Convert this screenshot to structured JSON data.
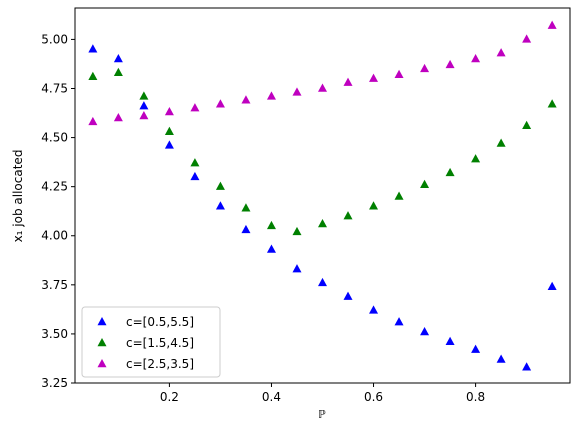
{
  "chart_data": {
    "type": "scatter",
    "title": "",
    "xlabel": "ℙ",
    "ylabel": "x₁ job allocated",
    "xlim": [
      0.015,
      0.985
    ],
    "ylim": [
      3.25,
      5.16
    ],
    "x_ticks": [
      0.2,
      0.4,
      0.6,
      0.8
    ],
    "x_tick_labels": [
      "0.2",
      "0.4",
      "0.6",
      "0.8"
    ],
    "y_ticks": [
      3.25,
      3.5,
      3.75,
      4.0,
      4.25,
      4.5,
      4.75,
      5.0
    ],
    "y_tick_labels": [
      "3.25",
      "3.50",
      "3.75",
      "4.00",
      "4.25",
      "4.50",
      "4.75",
      "5.00"
    ],
    "grid": false,
    "legend_position": "lower-left",
    "marker": "triangle-up",
    "x": [
      0.05,
      0.1,
      0.15,
      0.2,
      0.25,
      0.3,
      0.35,
      0.4,
      0.45,
      0.5,
      0.55,
      0.6,
      0.65,
      0.7,
      0.75,
      0.8,
      0.85,
      0.9,
      0.95
    ],
    "series": [
      {
        "name": "c=[0.5,5.5]",
        "color": "#0000ff",
        "values": [
          4.95,
          4.9,
          4.66,
          4.46,
          4.3,
          4.15,
          4.03,
          3.93,
          3.83,
          3.76,
          3.69,
          3.62,
          3.56,
          3.51,
          3.46,
          3.42,
          3.37,
          3.33,
          3.74
        ]
      },
      {
        "name": "c=[1.5,4.5]",
        "color": "#008000",
        "values": [
          4.81,
          4.83,
          4.71,
          4.53,
          4.37,
          4.25,
          4.14,
          4.05,
          4.02,
          4.06,
          4.1,
          4.15,
          4.2,
          4.26,
          4.32,
          4.39,
          4.47,
          4.56,
          4.67
        ]
      },
      {
        "name": "c=[2.5,3.5]",
        "color": "#bf00bf",
        "values": [
          4.58,
          4.6,
          4.61,
          4.63,
          4.65,
          4.67,
          4.69,
          4.71,
          4.73,
          4.75,
          4.78,
          4.8,
          4.82,
          4.85,
          4.87,
          4.9,
          4.93,
          5.0,
          5.07
        ]
      }
    ]
  }
}
